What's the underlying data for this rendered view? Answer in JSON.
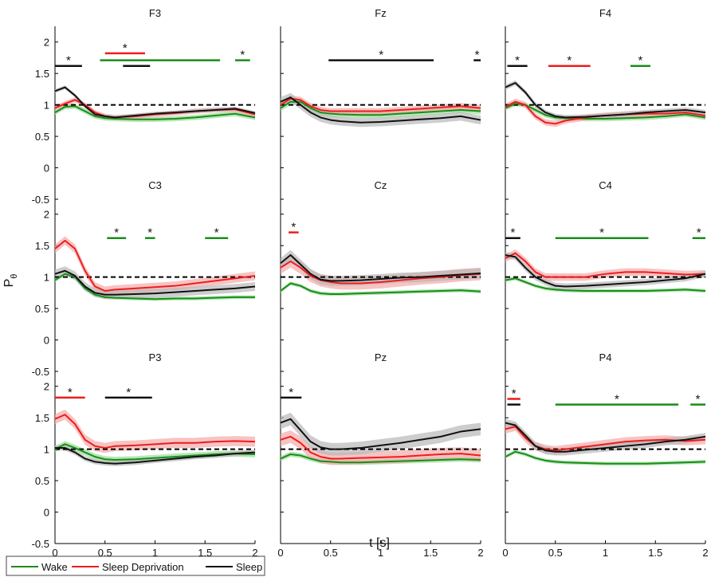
{
  "chart_data": {
    "type": "line",
    "ylabel_main": "P",
    "ylabel_sub": "θ",
    "xlabel": "t [s]",
    "x_ticks": [
      "0",
      "0.5",
      "1",
      "1.5",
      "2"
    ],
    "y_ticks": [
      "-0.5",
      "0",
      "0.5",
      "1",
      "1.5",
      "2"
    ],
    "xlim": [
      0,
      2
    ],
    "ylim": [
      -0.5,
      2.25
    ],
    "reference_line": 1,
    "colors": {
      "Wake": "#1a8c1a",
      "Sleep Deprivation": "#ee1c1c",
      "Sleep": "#111111"
    },
    "bands": {
      "Wake": "#99dd99",
      "Sleep Deprivation": "#f5aaaa",
      "Sleep": "#b8b8b8"
    },
    "legend": [
      {
        "label": "Wake",
        "series": "Wake"
      },
      {
        "label": "Sleep Deprivation",
        "series": "Sleep Deprivation"
      },
      {
        "label": "Sleep",
        "series": "Sleep"
      }
    ],
    "star_label": "*",
    "panels": [
      {
        "title": "F3",
        "x": [
          0,
          0.1,
          0.2,
          0.3,
          0.4,
          0.5,
          0.6,
          0.8,
          1.0,
          1.2,
          1.4,
          1.6,
          1.8,
          2.0
        ],
        "series": [
          {
            "name": "Wake",
            "values": [
              0.88,
              0.97,
              0.98,
              0.9,
              0.82,
              0.79,
              0.78,
              0.77,
              0.77,
              0.78,
              0.8,
              0.83,
              0.86,
              0.8
            ],
            "ci": 0.04
          },
          {
            "name": "Sleep Deprivation",
            "values": [
              0.95,
              1.02,
              1.08,
              1.0,
              0.88,
              0.82,
              0.8,
              0.82,
              0.85,
              0.87,
              0.9,
              0.92,
              0.93,
              0.85
            ],
            "ci": 0.04
          },
          {
            "name": "Sleep",
            "values": [
              1.22,
              1.28,
              1.15,
              0.98,
              0.85,
              0.82,
              0.8,
              0.83,
              0.86,
              0.88,
              0.9,
              0.92,
              0.94,
              0.87
            ],
            "ci": 0.03
          }
        ],
        "sig": [
          {
            "series": "Sleep",
            "x0": 0.0,
            "x1": 0.27,
            "y": 1.62,
            "star": true
          },
          {
            "series": "Sleep Deprivation",
            "x0": 0.5,
            "x1": 0.9,
            "y": 1.82,
            "star": true
          },
          {
            "series": "Wake",
            "x0": 0.45,
            "x1": 1.65,
            "y": 1.71,
            "star": false
          },
          {
            "series": "Sleep",
            "x0": 0.68,
            "x1": 0.95,
            "y": 1.62,
            "star": false
          },
          {
            "series": "Wake",
            "x0": 1.8,
            "x1": 1.95,
            "y": 1.71,
            "star": true
          }
        ]
      },
      {
        "title": "Fz",
        "x": [
          0,
          0.1,
          0.2,
          0.3,
          0.4,
          0.5,
          0.6,
          0.8,
          1.0,
          1.2,
          1.4,
          1.6,
          1.8,
          2.0
        ],
        "series": [
          {
            "name": "Wake",
            "values": [
              0.95,
              1.05,
              1.05,
              0.95,
              0.88,
              0.86,
              0.85,
              0.84,
              0.84,
              0.86,
              0.88,
              0.9,
              0.92,
              0.9
            ],
            "ci": 0.05
          },
          {
            "name": "Sleep Deprivation",
            "values": [
              1.0,
              1.1,
              1.08,
              0.98,
              0.92,
              0.9,
              0.9,
              0.9,
              0.9,
              0.92,
              0.94,
              0.96,
              0.98,
              0.95
            ],
            "ci": 0.05
          },
          {
            "name": "Sleep",
            "values": [
              1.05,
              1.12,
              1.0,
              0.88,
              0.8,
              0.76,
              0.74,
              0.72,
              0.73,
              0.75,
              0.77,
              0.79,
              0.82,
              0.76
            ],
            "ci": 0.07
          }
        ],
        "sig": [
          {
            "series": "Sleep",
            "x0": 0.48,
            "x1": 1.53,
            "y": 1.71,
            "star": true
          },
          {
            "series": "Sleep",
            "x0": 1.93,
            "x1": 2.0,
            "y": 1.71,
            "star": true
          }
        ]
      },
      {
        "title": "F4",
        "x": [
          0,
          0.1,
          0.2,
          0.3,
          0.4,
          0.5,
          0.6,
          0.8,
          1.0,
          1.2,
          1.4,
          1.6,
          1.8,
          2.0
        ],
        "series": [
          {
            "name": "Wake",
            "values": [
              0.95,
              1.02,
              1.0,
              0.92,
              0.84,
              0.8,
              0.79,
              0.78,
              0.78,
              0.79,
              0.8,
              0.82,
              0.85,
              0.8
            ],
            "ci": 0.04
          },
          {
            "name": "Sleep Deprivation",
            "values": [
              0.97,
              1.05,
              1.0,
              0.82,
              0.72,
              0.7,
              0.75,
              0.8,
              0.83,
              0.85,
              0.86,
              0.86,
              0.88,
              0.83
            ],
            "ci": 0.05
          },
          {
            "name": "Sleep",
            "values": [
              1.28,
              1.35,
              1.2,
              1.0,
              0.88,
              0.82,
              0.8,
              0.81,
              0.83,
              0.85,
              0.88,
              0.9,
              0.92,
              0.88
            ],
            "ci": 0.04
          }
        ],
        "sig": [
          {
            "series": "Sleep",
            "x0": 0.02,
            "x1": 0.22,
            "y": 1.62,
            "star": true
          },
          {
            "series": "Sleep Deprivation",
            "x0": 0.43,
            "x1": 0.85,
            "y": 1.62,
            "star": true
          },
          {
            "series": "Wake",
            "x0": 1.25,
            "x1": 1.45,
            "y": 1.62,
            "star": true
          }
        ]
      },
      {
        "title": "C3",
        "x": [
          0,
          0.1,
          0.2,
          0.3,
          0.4,
          0.5,
          0.6,
          0.8,
          1.0,
          1.2,
          1.4,
          1.6,
          1.8,
          2.0
        ],
        "series": [
          {
            "name": "Wake",
            "values": [
              0.95,
              1.05,
              1.0,
              0.82,
              0.72,
              0.68,
              0.67,
              0.66,
              0.65,
              0.66,
              0.66,
              0.67,
              0.68,
              0.68
            ],
            "ci": 0.03
          },
          {
            "name": "Sleep Deprivation",
            "values": [
              1.45,
              1.58,
              1.45,
              1.1,
              0.85,
              0.78,
              0.8,
              0.82,
              0.84,
              0.86,
              0.9,
              0.94,
              0.98,
              1.02
            ],
            "ci": 0.07
          },
          {
            "name": "Sleep",
            "values": [
              1.05,
              1.1,
              1.02,
              0.85,
              0.75,
              0.72,
              0.72,
              0.73,
              0.74,
              0.76,
              0.78,
              0.8,
              0.82,
              0.85
            ],
            "ci": 0.07
          }
        ],
        "sig": [
          {
            "series": "Wake",
            "x0": 0.52,
            "x1": 0.71,
            "y": 1.62,
            "star": true
          },
          {
            "series": "Wake",
            "x0": 0.9,
            "x1": 1.0,
            "y": 1.62,
            "star": true
          },
          {
            "series": "Wake",
            "x0": 1.5,
            "x1": 1.73,
            "y": 1.62,
            "star": true
          }
        ]
      },
      {
        "title": "Cz",
        "x": [
          0,
          0.1,
          0.2,
          0.3,
          0.4,
          0.5,
          0.6,
          0.8,
          1.0,
          1.2,
          1.4,
          1.6,
          1.8,
          2.0
        ],
        "series": [
          {
            "name": "Wake",
            "values": [
              0.78,
              0.9,
              0.86,
              0.78,
              0.74,
              0.73,
              0.73,
              0.74,
              0.75,
              0.76,
              0.77,
              0.78,
              0.79,
              0.77
            ],
            "ci": 0.03
          },
          {
            "name": "Sleep Deprivation",
            "values": [
              1.15,
              1.25,
              1.15,
              1.02,
              0.95,
              0.92,
              0.9,
              0.9,
              0.92,
              0.95,
              0.98,
              1.0,
              1.03,
              1.05
            ],
            "ci": 0.1
          },
          {
            "name": "Sleep",
            "values": [
              1.22,
              1.35,
              1.2,
              1.05,
              0.96,
              0.94,
              0.94,
              0.95,
              0.97,
              0.99,
              1.0,
              1.02,
              1.04,
              1.06
            ],
            "ci": 0.08
          }
        ],
        "sig": [
          {
            "series": "Sleep Deprivation",
            "x0": 0.08,
            "x1": 0.18,
            "y": 1.71,
            "star": true
          }
        ]
      },
      {
        "title": "C4",
        "x": [
          0,
          0.1,
          0.2,
          0.3,
          0.4,
          0.5,
          0.6,
          0.8,
          1.0,
          1.2,
          1.4,
          1.6,
          1.8,
          2.0
        ],
        "series": [
          {
            "name": "Wake",
            "values": [
              0.95,
              0.98,
              0.92,
              0.86,
              0.82,
              0.8,
              0.79,
              0.78,
              0.78,
              0.78,
              0.78,
              0.79,
              0.8,
              0.78
            ],
            "ci": 0.03
          },
          {
            "name": "Sleep Deprivation",
            "values": [
              1.3,
              1.38,
              1.25,
              1.08,
              1.0,
              1.0,
              1.0,
              1.0,
              1.05,
              1.08,
              1.08,
              1.06,
              1.04,
              1.05
            ],
            "ci": 0.06
          },
          {
            "name": "Sleep",
            "values": [
              1.35,
              1.32,
              1.15,
              1.0,
              0.92,
              0.86,
              0.85,
              0.86,
              0.88,
              0.9,
              0.92,
              0.95,
              0.98,
              1.05
            ],
            "ci": 0.05
          }
        ],
        "sig": [
          {
            "series": "Sleep",
            "x0": 0.0,
            "x1": 0.15,
            "y": 1.62,
            "star": true
          },
          {
            "series": "Wake",
            "x0": 0.5,
            "x1": 1.43,
            "y": 1.62,
            "star": true
          },
          {
            "series": "Wake",
            "x0": 1.87,
            "x1": 2.0,
            "y": 1.62,
            "star": true
          }
        ]
      },
      {
        "title": "P3",
        "x": [
          0,
          0.1,
          0.2,
          0.3,
          0.4,
          0.5,
          0.6,
          0.8,
          1.0,
          1.2,
          1.4,
          1.6,
          1.8,
          2.0
        ],
        "series": [
          {
            "name": "Wake",
            "values": [
              1.0,
              1.08,
              1.02,
              0.95,
              0.88,
              0.84,
              0.83,
              0.84,
              0.86,
              0.88,
              0.9,
              0.92,
              0.93,
              0.92
            ],
            "ci": 0.05
          },
          {
            "name": "Sleep Deprivation",
            "values": [
              1.48,
              1.55,
              1.4,
              1.15,
              1.05,
              1.02,
              1.05,
              1.06,
              1.08,
              1.1,
              1.1,
              1.12,
              1.13,
              1.12
            ],
            "ci": 0.08
          },
          {
            "name": "Sleep",
            "values": [
              1.02,
              1.02,
              0.95,
              0.85,
              0.8,
              0.78,
              0.77,
              0.79,
              0.82,
              0.85,
              0.88,
              0.9,
              0.93,
              0.95
            ],
            "ci": 0.04
          }
        ],
        "sig": [
          {
            "series": "Sleep Deprivation",
            "x0": 0.0,
            "x1": 0.3,
            "y": 1.82,
            "star": true
          },
          {
            "series": "Sleep",
            "x0": 0.5,
            "x1": 0.97,
            "y": 1.82,
            "star": true
          }
        ]
      },
      {
        "title": "Pz",
        "x": [
          0,
          0.1,
          0.2,
          0.3,
          0.4,
          0.5,
          0.6,
          0.8,
          1.0,
          1.2,
          1.4,
          1.6,
          1.8,
          2.0
        ],
        "series": [
          {
            "name": "Wake",
            "values": [
              0.85,
              0.92,
              0.9,
              0.85,
              0.81,
              0.8,
              0.79,
              0.79,
              0.8,
              0.81,
              0.82,
              0.83,
              0.84,
              0.83
            ],
            "ci": 0.04
          },
          {
            "name": "Sleep Deprivation",
            "values": [
              1.15,
              1.2,
              1.1,
              0.95,
              0.88,
              0.85,
              0.85,
              0.86,
              0.87,
              0.88,
              0.9,
              0.92,
              0.93,
              0.9
            ],
            "ci": 0.1
          },
          {
            "name": "Sleep",
            "values": [
              1.42,
              1.48,
              1.3,
              1.12,
              1.03,
              1.0,
              1.0,
              1.02,
              1.06,
              1.1,
              1.15,
              1.2,
              1.28,
              1.32
            ],
            "ci": 0.1
          }
        ],
        "sig": [
          {
            "series": "Sleep",
            "x0": 0.0,
            "x1": 0.21,
            "y": 1.82,
            "star": true
          }
        ]
      },
      {
        "title": "P4",
        "x": [
          0,
          0.1,
          0.2,
          0.3,
          0.4,
          0.5,
          0.6,
          0.8,
          1.0,
          1.2,
          1.4,
          1.6,
          1.8,
          2.0
        ],
        "series": [
          {
            "name": "Wake",
            "values": [
              0.88,
              0.96,
              0.92,
              0.86,
              0.82,
              0.8,
              0.79,
              0.78,
              0.77,
              0.77,
              0.77,
              0.78,
              0.79,
              0.8
            ],
            "ci": 0.03
          },
          {
            "name": "Sleep Deprivation",
            "values": [
              1.32,
              1.36,
              1.18,
              1.05,
              1.0,
              0.98,
              1.0,
              1.04,
              1.08,
              1.12,
              1.14,
              1.15,
              1.13,
              1.15
            ],
            "ci": 0.07
          },
          {
            "name": "Sleep",
            "values": [
              1.42,
              1.38,
              1.22,
              1.05,
              0.98,
              0.96,
              0.96,
              0.99,
              1.02,
              1.05,
              1.08,
              1.12,
              1.15,
              1.2
            ],
            "ci": 0.06
          }
        ],
        "sig": [
          {
            "series": "Sleep Deprivation",
            "x0": 0.02,
            "x1": 0.15,
            "y": 1.8,
            "star": true
          },
          {
            "series": "Sleep",
            "x0": 0.02,
            "x1": 0.15,
            "y": 1.71,
            "star": false
          },
          {
            "series": "Wake",
            "x0": 0.5,
            "x1": 1.73,
            "y": 1.71,
            "star": true
          },
          {
            "series": "Wake",
            "x0": 1.85,
            "x1": 2.0,
            "y": 1.71,
            "star": true
          }
        ]
      }
    ]
  }
}
